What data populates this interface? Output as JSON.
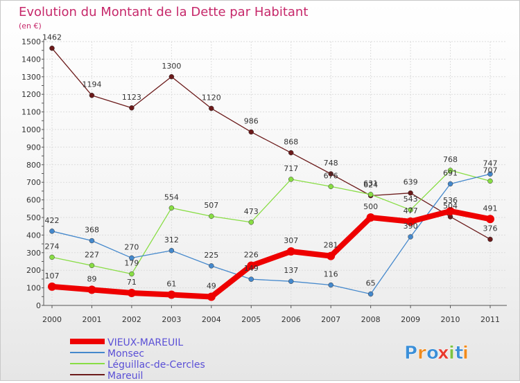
{
  "chart_data": {
    "type": "line",
    "title": "Evolution du Montant de la Dette par Habitant",
    "subtitle": "(en €)",
    "xlabel": "",
    "ylabel": "",
    "x": [
      "2000",
      "2001",
      "2002",
      "2003",
      "2004",
      "2005",
      "2006",
      "2007",
      "2008",
      "2009",
      "2010",
      "2011"
    ],
    "ylim": [
      0,
      1500
    ],
    "yticks": [
      0,
      100,
      200,
      300,
      400,
      500,
      600,
      700,
      800,
      900,
      1000,
      1100,
      1200,
      1300,
      1400,
      1500
    ],
    "grid": true,
    "legend_position": "bottom-left",
    "series": [
      {
        "name": "VIEUX-MAREUIL",
        "color": "#ee0000",
        "values": [
          107,
          89,
          71,
          61,
          49,
          226,
          307,
          281,
          500,
          477,
          536,
          491
        ]
      },
      {
        "name": "Monsec",
        "color": "#4488cc",
        "values": [
          422,
          368,
          270,
          312,
          225,
          149,
          137,
          116,
          65,
          390,
          691,
          747
        ]
      },
      {
        "name": "Léguillac-de-Cercles",
        "color": "#88dd44",
        "values": [
          274,
          227,
          179,
          554,
          507,
          473,
          717,
          676,
          631,
          543,
          768,
          707
        ]
      },
      {
        "name": "Mareuil",
        "color": "#6b1a1a",
        "values": [
          1462,
          1194,
          1123,
          1300,
          1120,
          986,
          868,
          748,
          624,
          639,
          504,
          376
        ]
      }
    ],
    "data_labels": {
      "VIEUX-MAREUIL": [
        "107",
        "89",
        "71",
        "61",
        "49",
        "226",
        "307",
        "281",
        "500",
        "477",
        "536",
        "491"
      ],
      "Monsec": [
        "422",
        "368",
        "270",
        "312",
        "225",
        "149",
        "137",
        "116",
        "65",
        "390",
        "691",
        "747"
      ],
      "Léguillac-de-Cercles": [
        "274",
        "227",
        "179",
        "554",
        "507",
        "473",
        "717",
        "676",
        "631",
        "543",
        "768",
        "707"
      ],
      "Mareuil": [
        "1462",
        "1194",
        "1123",
        "1300",
        "1120",
        "986",
        "868",
        "748",
        "624",
        "639",
        "504",
        "376"
      ]
    }
  },
  "brand": {
    "logo_text": "Proxiti",
    "letters": [
      "P",
      "r",
      "o",
      "x",
      "i",
      "t",
      "i"
    ],
    "colors": [
      "#3b8fd8",
      "#f08a1c",
      "#3b8fd8",
      "#e83a2e",
      "#7cc242",
      "#3b8fd8",
      "#f08a1c"
    ]
  }
}
